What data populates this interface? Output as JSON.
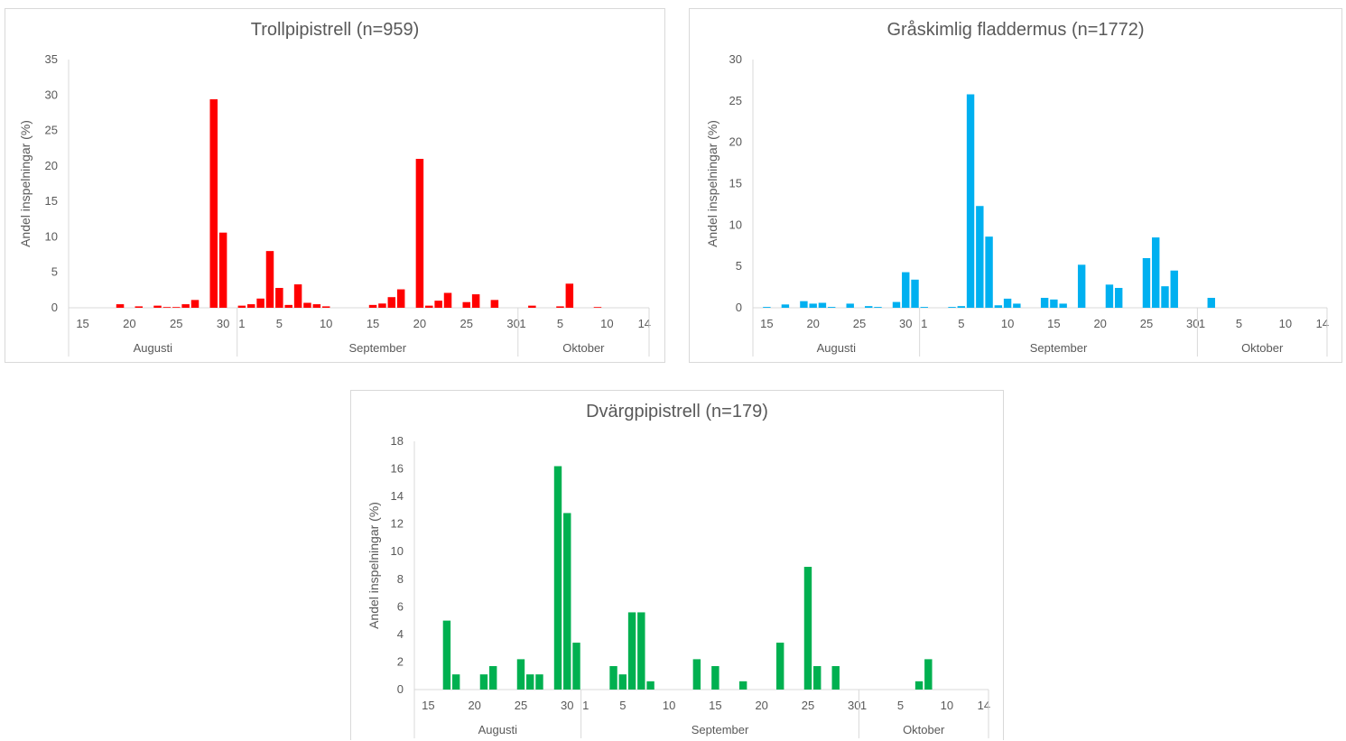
{
  "chart_data": [
    {
      "type": "bar",
      "title": "Trollpipistrell (n=959)",
      "ylabel": "Andel inspelningar (%)",
      "ylim": [
        0,
        35
      ],
      "yticks": [
        0,
        5,
        10,
        15,
        20,
        25,
        30,
        35
      ],
      "color": "#ff0000",
      "day_range": [
        "08-14",
        "10-15"
      ],
      "x_tick_labels": [
        {
          "date": "08-15",
          "label": "15"
        },
        {
          "date": "08-20",
          "label": "20"
        },
        {
          "date": "08-25",
          "label": "25"
        },
        {
          "date": "08-30",
          "label": "30"
        },
        {
          "date": "09-01",
          "label": "1"
        },
        {
          "date": "09-05",
          "label": "5"
        },
        {
          "date": "09-10",
          "label": "10"
        },
        {
          "date": "09-15",
          "label": "15"
        },
        {
          "date": "09-20",
          "label": "20"
        },
        {
          "date": "09-25",
          "label": "25"
        },
        {
          "date": "09-30",
          "label": "30"
        },
        {
          "date": "10-01",
          "label": "1"
        },
        {
          "date": "10-05",
          "label": "5"
        },
        {
          "date": "10-10",
          "label": "10"
        },
        {
          "date": "10-14",
          "label": "14"
        }
      ],
      "month_groups": [
        {
          "label": "Augusti",
          "start": "08-14",
          "end": "08-31"
        },
        {
          "label": "September",
          "start": "09-01",
          "end": "09-30"
        },
        {
          "label": "Oktober",
          "start": "10-01",
          "end": "10-15"
        }
      ],
      "data": [
        {
          "date": "08-19",
          "value": 0.5
        },
        {
          "date": "08-21",
          "value": 0.2
        },
        {
          "date": "08-23",
          "value": 0.3
        },
        {
          "date": "08-24",
          "value": 0.1
        },
        {
          "date": "08-25",
          "value": 0.1
        },
        {
          "date": "08-26",
          "value": 0.5
        },
        {
          "date": "08-27",
          "value": 1.1
        },
        {
          "date": "08-29",
          "value": 29.4
        },
        {
          "date": "08-30",
          "value": 10.6
        },
        {
          "date": "09-01",
          "value": 0.3
        },
        {
          "date": "09-02",
          "value": 0.5
        },
        {
          "date": "09-03",
          "value": 1.3
        },
        {
          "date": "09-04",
          "value": 8.0
        },
        {
          "date": "09-05",
          "value": 2.8
        },
        {
          "date": "09-06",
          "value": 0.4
        },
        {
          "date": "09-07",
          "value": 3.3
        },
        {
          "date": "09-08",
          "value": 0.7
        },
        {
          "date": "09-09",
          "value": 0.5
        },
        {
          "date": "09-10",
          "value": 0.2
        },
        {
          "date": "09-15",
          "value": 0.4
        },
        {
          "date": "09-16",
          "value": 0.6
        },
        {
          "date": "09-17",
          "value": 1.5
        },
        {
          "date": "09-18",
          "value": 2.6
        },
        {
          "date": "09-20",
          "value": 21.0
        },
        {
          "date": "09-21",
          "value": 0.3
        },
        {
          "date": "09-22",
          "value": 1.0
        },
        {
          "date": "09-23",
          "value": 2.1
        },
        {
          "date": "09-25",
          "value": 0.8
        },
        {
          "date": "09-26",
          "value": 1.9
        },
        {
          "date": "09-28",
          "value": 1.1
        },
        {
          "date": "10-02",
          "value": 0.3
        },
        {
          "date": "10-05",
          "value": 0.2
        },
        {
          "date": "10-06",
          "value": 3.4
        },
        {
          "date": "10-09",
          "value": 0.1
        }
      ]
    },
    {
      "type": "bar",
      "title": "Gråskimlig fladdermus (n=1772)",
      "ylabel": "Andel inspelningar (%)",
      "ylim": [
        0,
        30
      ],
      "yticks": [
        0,
        5,
        10,
        15,
        20,
        25,
        30
      ],
      "color": "#00b0f0",
      "day_range": [
        "08-14",
        "10-15"
      ],
      "x_tick_labels": [
        {
          "date": "08-15",
          "label": "15"
        },
        {
          "date": "08-20",
          "label": "20"
        },
        {
          "date": "08-25",
          "label": "25"
        },
        {
          "date": "08-30",
          "label": "30"
        },
        {
          "date": "09-01",
          "label": "1"
        },
        {
          "date": "09-05",
          "label": "5"
        },
        {
          "date": "09-10",
          "label": "10"
        },
        {
          "date": "09-15",
          "label": "15"
        },
        {
          "date": "09-20",
          "label": "20"
        },
        {
          "date": "09-25",
          "label": "25"
        },
        {
          "date": "09-30",
          "label": "30"
        },
        {
          "date": "10-01",
          "label": "1"
        },
        {
          "date": "10-05",
          "label": "5"
        },
        {
          "date": "10-10",
          "label": "10"
        },
        {
          "date": "10-14",
          "label": "14"
        }
      ],
      "month_groups": [
        {
          "label": "Augusti",
          "start": "08-14",
          "end": "08-31"
        },
        {
          "label": "September",
          "start": "09-01",
          "end": "09-30"
        },
        {
          "label": "Oktober",
          "start": "10-01",
          "end": "10-15"
        }
      ],
      "data": [
        {
          "date": "08-15",
          "value": 0.1
        },
        {
          "date": "08-17",
          "value": 0.4
        },
        {
          "date": "08-19",
          "value": 0.8
        },
        {
          "date": "08-20",
          "value": 0.5
        },
        {
          "date": "08-21",
          "value": 0.6
        },
        {
          "date": "08-22",
          "value": 0.1
        },
        {
          "date": "08-24",
          "value": 0.5
        },
        {
          "date": "08-26",
          "value": 0.2
        },
        {
          "date": "08-27",
          "value": 0.1
        },
        {
          "date": "08-29",
          "value": 0.7
        },
        {
          "date": "08-30",
          "value": 4.3
        },
        {
          "date": "08-31",
          "value": 3.4
        },
        {
          "date": "09-01",
          "value": 0.1
        },
        {
          "date": "09-04",
          "value": 0.1
        },
        {
          "date": "09-05",
          "value": 0.2
        },
        {
          "date": "09-06",
          "value": 25.8
        },
        {
          "date": "09-07",
          "value": 12.3
        },
        {
          "date": "09-08",
          "value": 8.6
        },
        {
          "date": "09-09",
          "value": 0.3
        },
        {
          "date": "09-10",
          "value": 1.1
        },
        {
          "date": "09-11",
          "value": 0.5
        },
        {
          "date": "09-14",
          "value": 1.2
        },
        {
          "date": "09-15",
          "value": 1.0
        },
        {
          "date": "09-16",
          "value": 0.5
        },
        {
          "date": "09-18",
          "value": 5.2
        },
        {
          "date": "09-21",
          "value": 2.8
        },
        {
          "date": "09-22",
          "value": 2.4
        },
        {
          "date": "09-25",
          "value": 6.0
        },
        {
          "date": "09-26",
          "value": 8.5
        },
        {
          "date": "09-27",
          "value": 2.6
        },
        {
          "date": "09-28",
          "value": 4.5
        },
        {
          "date": "10-02",
          "value": 1.2
        }
      ]
    },
    {
      "type": "bar",
      "title": "Dvärgpipistrell (n=179)",
      "ylabel": "Andel inspelningar (%)",
      "ylim": [
        0,
        18
      ],
      "yticks": [
        0,
        2,
        4,
        6,
        8,
        10,
        12,
        14,
        16,
        18
      ],
      "color": "#00b050",
      "day_range": [
        "08-14",
        "10-15"
      ],
      "x_tick_labels": [
        {
          "date": "08-15",
          "label": "15"
        },
        {
          "date": "08-20",
          "label": "20"
        },
        {
          "date": "08-25",
          "label": "25"
        },
        {
          "date": "08-30",
          "label": "30"
        },
        {
          "date": "09-01",
          "label": "1"
        },
        {
          "date": "09-05",
          "label": "5"
        },
        {
          "date": "09-10",
          "label": "10"
        },
        {
          "date": "09-15",
          "label": "15"
        },
        {
          "date": "09-20",
          "label": "20"
        },
        {
          "date": "09-25",
          "label": "25"
        },
        {
          "date": "09-30",
          "label": "30"
        },
        {
          "date": "10-01",
          "label": "1"
        },
        {
          "date": "10-05",
          "label": "5"
        },
        {
          "date": "10-10",
          "label": "10"
        },
        {
          "date": "10-14",
          "label": "14"
        }
      ],
      "month_groups": [
        {
          "label": "Augusti",
          "start": "08-14",
          "end": "08-31"
        },
        {
          "label": "September",
          "start": "09-01",
          "end": "09-30"
        },
        {
          "label": "Oktober",
          "start": "10-01",
          "end": "10-15"
        }
      ],
      "data": [
        {
          "date": "08-17",
          "value": 5.0
        },
        {
          "date": "08-18",
          "value": 1.1
        },
        {
          "date": "08-21",
          "value": 1.1
        },
        {
          "date": "08-22",
          "value": 1.7
        },
        {
          "date": "08-25",
          "value": 2.2
        },
        {
          "date": "08-26",
          "value": 1.1
        },
        {
          "date": "08-27",
          "value": 1.1
        },
        {
          "date": "08-29",
          "value": 16.2
        },
        {
          "date": "08-30",
          "value": 12.8
        },
        {
          "date": "08-31",
          "value": 3.4
        },
        {
          "date": "09-04",
          "value": 1.7
        },
        {
          "date": "09-05",
          "value": 1.1
        },
        {
          "date": "09-06",
          "value": 5.6
        },
        {
          "date": "09-07",
          "value": 5.6
        },
        {
          "date": "09-08",
          "value": 0.6
        },
        {
          "date": "09-13",
          "value": 2.2
        },
        {
          "date": "09-15",
          "value": 1.7
        },
        {
          "date": "09-18",
          "value": 0.6
        },
        {
          "date": "09-22",
          "value": 3.4
        },
        {
          "date": "09-25",
          "value": 8.9
        },
        {
          "date": "09-26",
          "value": 1.7
        },
        {
          "date": "09-28",
          "value": 1.7
        },
        {
          "date": "10-07",
          "value": 0.6
        },
        {
          "date": "10-08",
          "value": 2.2
        }
      ]
    }
  ]
}
